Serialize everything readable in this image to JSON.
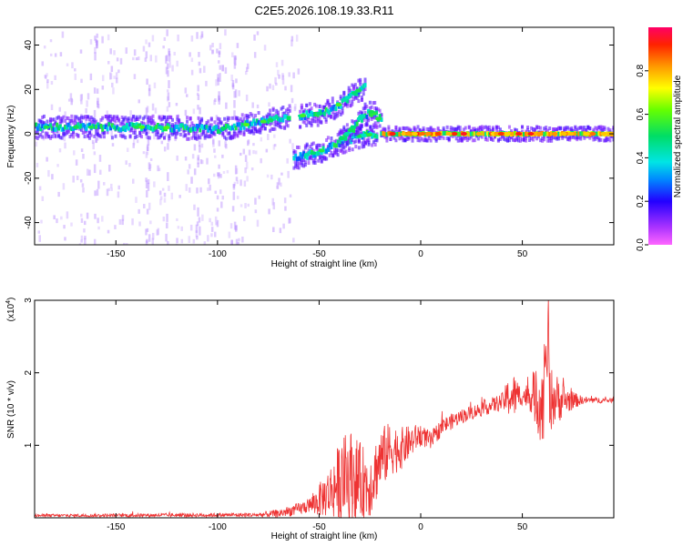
{
  "title": "C2E5.2026.108.19.33.R11",
  "chart_data": [
    {
      "type": "heatmap",
      "xlabel": "Height of straight line (km)",
      "ylabel": "Frequency (Hz)",
      "xlim": [
        -190,
        95
      ],
      "ylim": [
        -50,
        48
      ],
      "xticks": [
        -150,
        -100,
        -50,
        0,
        50
      ],
      "yticks": [
        -40,
        -20,
        0,
        20,
        40
      ],
      "colorbar": {
        "label": "Normalized spectral amplitude",
        "range": [
          0.0,
          1.0
        ],
        "ticks": [
          0.0,
          0.2,
          0.4,
          0.6,
          0.8
        ]
      },
      "ridges": [
        {
          "x": [
            -190,
            -160,
            -130,
            -100,
            -80,
            -65
          ],
          "y": [
            3,
            3,
            3,
            2,
            5,
            8
          ]
        },
        {
          "x": [
            -63,
            -50,
            -40,
            -30,
            -22
          ],
          "y": [
            -11,
            -8,
            -4,
            -1,
            0
          ]
        },
        {
          "x": [
            -60,
            -50,
            -42,
            -35,
            -28
          ],
          "y": [
            8,
            9,
            12,
            17,
            21
          ]
        },
        {
          "x": [
            -40,
            -34,
            -29,
            -24,
            -20
          ],
          "y": [
            -3,
            2,
            8,
            10,
            6
          ]
        },
        {
          "x": [
            -20,
            0,
            20,
            40,
            60,
            80,
            95
          ],
          "y": [
            0,
            0,
            0,
            0,
            0,
            0,
            0
          ]
        }
      ]
    },
    {
      "type": "line",
      "xlabel": "Height of straight line (km)",
      "ylabel": "SNR (10 * v/v)",
      "multiplier": "(x10",
      "multiplier_exp": "4",
      "multiplier_close": ")",
      "xlim": [
        -190,
        95
      ],
      "ylim": [
        0,
        3
      ],
      "xticks": [
        -150,
        -100,
        -50,
        0,
        50
      ],
      "yticks": [
        1,
        2,
        3
      ],
      "color": "#ee3333",
      "envelope": {
        "x": [
          -190,
          -80,
          -70,
          -60,
          -52,
          -45,
          -40,
          -35,
          -30,
          -25,
          -20,
          -15,
          -10,
          -5,
          0,
          5,
          10,
          20,
          30,
          40,
          44,
          50,
          55,
          60,
          65,
          70,
          80,
          95
        ],
        "y": [
          0.03,
          0.04,
          0.06,
          0.12,
          0.2,
          0.35,
          0.5,
          0.6,
          0.5,
          0.45,
          0.8,
          0.95,
          0.95,
          1.05,
          1.15,
          1.05,
          1.25,
          1.4,
          1.5,
          1.6,
          1.68,
          1.68,
          1.68,
          1.6,
          1.65,
          1.62,
          1.62,
          1.62
        ]
      },
      "noise": {
        "x": [
          -190,
          -80,
          -55,
          -45,
          -40,
          -35,
          -30,
          -25,
          -20,
          -10,
          0,
          10,
          20,
          30,
          40,
          45,
          50,
          55,
          58,
          62,
          65,
          70,
          75,
          80,
          95
        ],
        "y": [
          0.02,
          0.03,
          0.1,
          0.35,
          0.55,
          0.65,
          0.55,
          0.45,
          0.45,
          0.3,
          0.15,
          0.12,
          0.1,
          0.1,
          0.12,
          0.35,
          0.12,
          0.25,
          0.55,
          0.55,
          0.4,
          0.25,
          0.12,
          0.05,
          0.03
        ]
      }
    }
  ]
}
